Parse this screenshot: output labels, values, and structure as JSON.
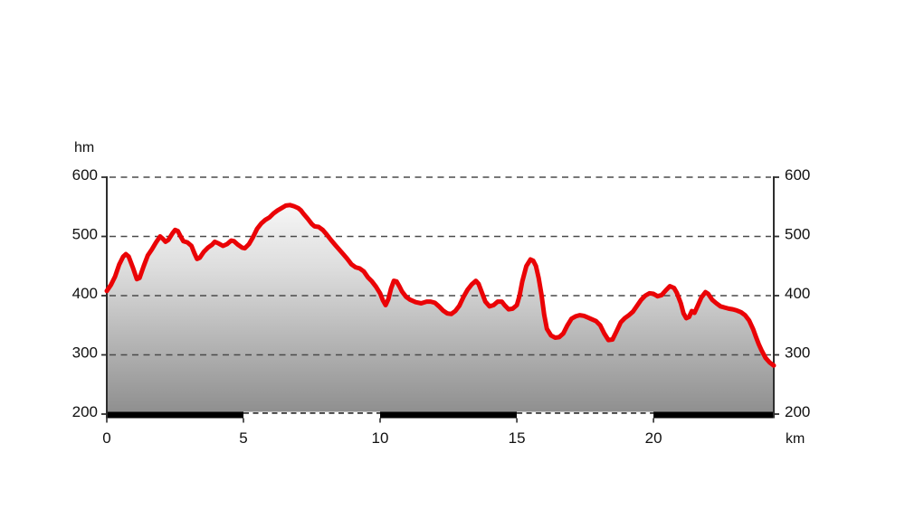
{
  "page": {
    "background_color": "#ffffff"
  },
  "chart_data": {
    "type": "area",
    "title": "",
    "subtitle": "",
    "legend": "none",
    "y_axis_unit_label": "hm",
    "x_axis_unit_label": "km",
    "ylim": [
      200,
      600
    ],
    "xlim": [
      0,
      24.4
    ],
    "y_ticks": [
      200,
      300,
      400,
      500,
      600
    ],
    "y_tick_labels": [
      "200",
      "300",
      "400",
      "500",
      "600"
    ],
    "y_axis_labels_on_both_sides": true,
    "x_ticks": [
      0,
      5,
      10,
      15,
      20
    ],
    "x_tick_labels": [
      "0",
      "5",
      "10",
      "15",
      "20"
    ],
    "grid": {
      "horizontal_dashed_at": [
        300,
        400,
        500,
        600
      ],
      "color": "#4a4a4a"
    },
    "colors": {
      "line": "#ea0306",
      "fill_top": "#fcfcfc",
      "fill_mid": "#dddddd",
      "fill_bottom": "#8e8e8e",
      "axis": "#2e2e2e",
      "text": "#111111",
      "bar_black": "#000000",
      "bar_white": "#ffffff"
    },
    "distance_bar_segments_km": [
      {
        "from": 0,
        "to": 5,
        "style": "black"
      },
      {
        "from": 5,
        "to": 10,
        "style": "white-dashed"
      },
      {
        "from": 10,
        "to": 15,
        "style": "black"
      },
      {
        "from": 15,
        "to": 20,
        "style": "white-dashed"
      },
      {
        "from": 20,
        "to": 24.4,
        "style": "black"
      }
    ],
    "series": [
      {
        "name": "elevation_profile",
        "points_km_hm": [
          [
            0.0,
            408
          ],
          [
            0.15,
            418
          ],
          [
            0.3,
            432
          ],
          [
            0.45,
            452
          ],
          [
            0.6,
            466
          ],
          [
            0.7,
            470
          ],
          [
            0.8,
            466
          ],
          [
            0.95,
            448
          ],
          [
            1.1,
            428
          ],
          [
            1.2,
            430
          ],
          [
            1.35,
            450
          ],
          [
            1.5,
            468
          ],
          [
            1.65,
            478
          ],
          [
            1.8,
            490
          ],
          [
            1.95,
            500
          ],
          [
            2.05,
            496
          ],
          [
            2.15,
            491
          ],
          [
            2.25,
            494
          ],
          [
            2.4,
            505
          ],
          [
            2.5,
            511
          ],
          [
            2.6,
            509
          ],
          [
            2.7,
            500
          ],
          [
            2.8,
            492
          ],
          [
            2.95,
            490
          ],
          [
            3.1,
            484
          ],
          [
            3.2,
            472
          ],
          [
            3.3,
            462
          ],
          [
            3.4,
            464
          ],
          [
            3.55,
            474
          ],
          [
            3.7,
            481
          ],
          [
            3.85,
            486
          ],
          [
            3.95,
            491
          ],
          [
            4.1,
            488
          ],
          [
            4.25,
            484
          ],
          [
            4.4,
            487
          ],
          [
            4.55,
            493
          ],
          [
            4.65,
            492
          ],
          [
            4.8,
            486
          ],
          [
            4.95,
            481
          ],
          [
            5.05,
            480
          ],
          [
            5.2,
            487
          ],
          [
            5.35,
            499
          ],
          [
            5.5,
            513
          ],
          [
            5.65,
            522
          ],
          [
            5.8,
            528
          ],
          [
            5.95,
            532
          ],
          [
            6.1,
            539
          ],
          [
            6.25,
            544
          ],
          [
            6.4,
            548
          ],
          [
            6.55,
            552
          ],
          [
            6.7,
            553
          ],
          [
            6.85,
            551
          ],
          [
            7.0,
            548
          ],
          [
            7.1,
            544
          ],
          [
            7.2,
            538
          ],
          [
            7.35,
            530
          ],
          [
            7.5,
            521
          ],
          [
            7.6,
            517
          ],
          [
            7.75,
            516
          ],
          [
            7.9,
            511
          ],
          [
            8.05,
            503
          ],
          [
            8.2,
            494
          ],
          [
            8.35,
            486
          ],
          [
            8.5,
            478
          ],
          [
            8.65,
            470
          ],
          [
            8.8,
            462
          ],
          [
            8.95,
            453
          ],
          [
            9.1,
            448
          ],
          [
            9.25,
            446
          ],
          [
            9.4,
            441
          ],
          [
            9.55,
            431
          ],
          [
            9.7,
            424
          ],
          [
            9.85,
            415
          ],
          [
            10.0,
            404
          ],
          [
            10.1,
            392
          ],
          [
            10.2,
            384
          ],
          [
            10.3,
            394
          ],
          [
            10.4,
            412
          ],
          [
            10.5,
            425
          ],
          [
            10.6,
            424
          ],
          [
            10.7,
            416
          ],
          [
            10.8,
            407
          ],
          [
            10.95,
            398
          ],
          [
            11.1,
            393
          ],
          [
            11.3,
            389
          ],
          [
            11.5,
            387
          ],
          [
            11.7,
            390
          ],
          [
            11.85,
            390
          ],
          [
            12.0,
            388
          ],
          [
            12.15,
            382
          ],
          [
            12.3,
            375
          ],
          [
            12.45,
            370
          ],
          [
            12.6,
            369
          ],
          [
            12.75,
            374
          ],
          [
            12.9,
            383
          ],
          [
            13.05,
            398
          ],
          [
            13.2,
            410
          ],
          [
            13.35,
            419
          ],
          [
            13.5,
            425
          ],
          [
            13.6,
            420
          ],
          [
            13.7,
            408
          ],
          [
            13.85,
            390
          ],
          [
            14.0,
            382
          ],
          [
            14.15,
            384
          ],
          [
            14.3,
            390
          ],
          [
            14.45,
            390
          ],
          [
            14.55,
            384
          ],
          [
            14.7,
            377
          ],
          [
            14.85,
            378
          ],
          [
            15.0,
            384
          ],
          [
            15.1,
            400
          ],
          [
            15.2,
            424
          ],
          [
            15.35,
            450
          ],
          [
            15.5,
            461
          ],
          [
            15.6,
            459
          ],
          [
            15.7,
            450
          ],
          [
            15.8,
            430
          ],
          [
            15.9,
            402
          ],
          [
            16.0,
            368
          ],
          [
            16.1,
            344
          ],
          [
            16.25,
            333
          ],
          [
            16.4,
            329
          ],
          [
            16.55,
            330
          ],
          [
            16.7,
            336
          ],
          [
            16.85,
            350
          ],
          [
            17.0,
            361
          ],
          [
            17.15,
            365
          ],
          [
            17.3,
            367
          ],
          [
            17.45,
            366
          ],
          [
            17.6,
            363
          ],
          [
            17.75,
            360
          ],
          [
            17.9,
            357
          ],
          [
            18.05,
            350
          ],
          [
            18.2,
            336
          ],
          [
            18.35,
            325
          ],
          [
            18.5,
            326
          ],
          [
            18.65,
            340
          ],
          [
            18.8,
            355
          ],
          [
            18.95,
            362
          ],
          [
            19.1,
            367
          ],
          [
            19.25,
            373
          ],
          [
            19.4,
            383
          ],
          [
            19.55,
            393
          ],
          [
            19.7,
            400
          ],
          [
            19.85,
            404
          ],
          [
            20.0,
            403
          ],
          [
            20.15,
            399
          ],
          [
            20.3,
            401
          ],
          [
            20.45,
            409
          ],
          [
            20.6,
            416
          ],
          [
            20.75,
            413
          ],
          [
            20.85,
            405
          ],
          [
            21.0,
            387
          ],
          [
            21.1,
            370
          ],
          [
            21.2,
            362
          ],
          [
            21.3,
            364
          ],
          [
            21.4,
            374
          ],
          [
            21.5,
            371
          ],
          [
            21.6,
            381
          ],
          [
            21.75,
            397
          ],
          [
            21.9,
            406
          ],
          [
            22.0,
            403
          ],
          [
            22.15,
            393
          ],
          [
            22.3,
            387
          ],
          [
            22.45,
            382
          ],
          [
            22.6,
            380
          ],
          [
            22.75,
            378
          ],
          [
            22.9,
            377
          ],
          [
            23.05,
            375
          ],
          [
            23.2,
            372
          ],
          [
            23.35,
            367
          ],
          [
            23.5,
            358
          ],
          [
            23.65,
            343
          ],
          [
            23.75,
            330
          ],
          [
            23.85,
            318
          ],
          [
            23.95,
            308
          ],
          [
            24.1,
            295
          ],
          [
            24.25,
            287
          ],
          [
            24.4,
            282
          ]
        ]
      }
    ]
  }
}
